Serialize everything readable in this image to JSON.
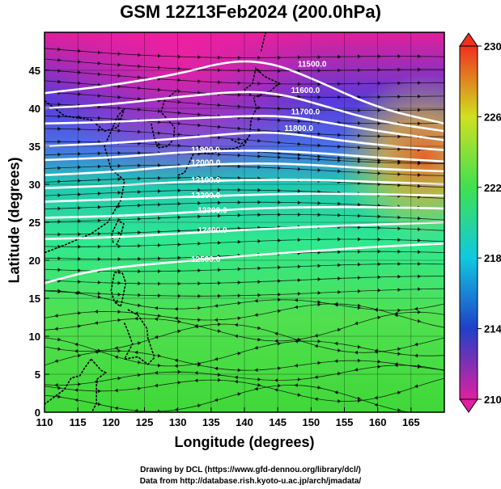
{
  "title": "GSM 12Z13Feb2024 (200.0hPa)",
  "xlabel": "Longitude (degrees)",
  "ylabel": "Latitude  (degrees)",
  "credits": [
    "Drawing by DCL (https://www.gfd-dennou.org/library/dcl/)",
    "Data from http://database.rish.kyoto-u.ac.jp/arch/jmadata/"
  ],
  "map": {
    "lon_range": [
      110,
      170
    ],
    "lat_range": [
      0,
      50
    ],
    "lon_ticks": [
      "110",
      "115",
      "120",
      "125",
      "130",
      "135",
      "140",
      "145",
      "150",
      "155",
      "160",
      "165"
    ],
    "lat_ticks": [
      "0",
      "5",
      "10",
      "15",
      "20",
      "25",
      "30",
      "35",
      "40",
      "45"
    ]
  },
  "colorbar": {
    "min": 210,
    "max": 230,
    "tick_labels": [
      "210",
      "214",
      "218",
      "222",
      "226",
      "230"
    ],
    "tick_values": [
      210,
      214,
      218,
      222,
      226,
      230
    ]
  },
  "contour_labels": [
    {
      "text": "11500.0",
      "lon": 148,
      "lat": 45.5
    },
    {
      "text": "11600.0",
      "lon": 147,
      "lat": 42
    },
    {
      "text": "11700.0",
      "lon": 147,
      "lat": 39.2
    },
    {
      "text": "11800.0",
      "lon": 146,
      "lat": 37
    },
    {
      "text": "11900.0",
      "lon": 132,
      "lat": 34.2
    },
    {
      "text": "12000.0",
      "lon": 132,
      "lat": 32.5
    },
    {
      "text": "12100.0",
      "lon": 132,
      "lat": 30.2
    },
    {
      "text": "12200.0",
      "lon": 132,
      "lat": 28.2
    },
    {
      "text": "12300.0",
      "lon": 133,
      "lat": 26.2
    },
    {
      "text": "12400.0",
      "lon": 133,
      "lat": 23.6
    },
    {
      "text": "12500.0",
      "lon": 132,
      "lat": 19.8
    }
  ]
}
